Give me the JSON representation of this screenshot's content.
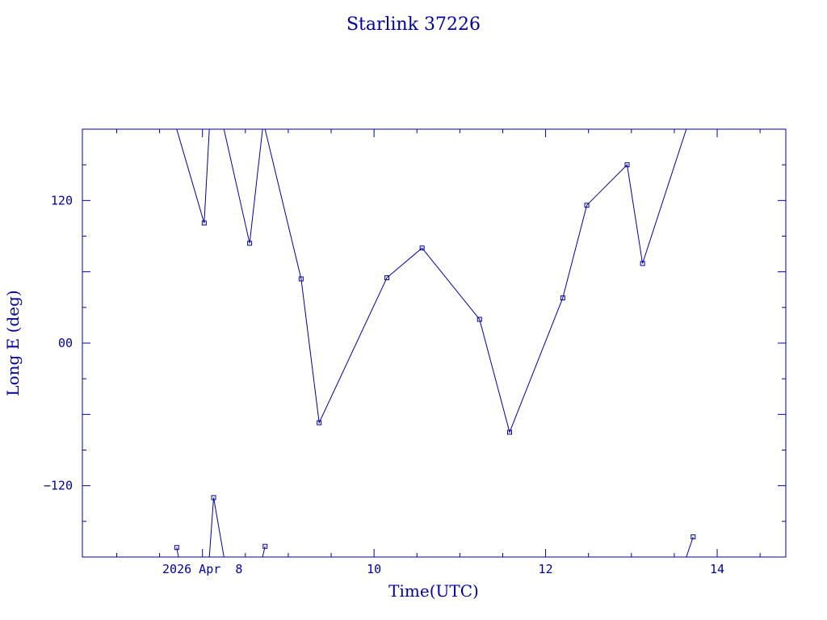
{
  "chart_data": {
    "type": "line",
    "title": "Starlink 37226",
    "xlabel": "Time(UTC)",
    "ylabel": "Long E (deg)",
    "xlim": [
      6.6,
      14.8
    ],
    "ylim": [
      -180,
      180
    ],
    "x_ticks": [
      {
        "value": 8,
        "label": "2026 Apr  8"
      },
      {
        "value": 10,
        "label": "10"
      },
      {
        "value": 12,
        "label": "12"
      },
      {
        "value": 14,
        "label": "14"
      }
    ],
    "y_ticks": [
      {
        "value": 120,
        "label": "120"
      },
      {
        "value": 0,
        "label": "00"
      },
      {
        "value": -120,
        "label": "−120"
      }
    ],
    "grid": false,
    "color": "#0000a0",
    "series": [
      {
        "points": [
          [
            7.7,
            -172
          ],
          [
            7.72,
            -180
          ]
        ]
      },
      {
        "points": [
          [
            7.7,
            180
          ],
          [
            8.02,
            101
          ],
          [
            8.08,
            180
          ]
        ]
      },
      {
        "points": [
          [
            8.08,
            -180
          ],
          [
            8.13,
            -130
          ],
          [
            8.25,
            -180
          ]
        ]
      },
      {
        "points": [
          [
            8.25,
            180
          ],
          [
            8.55,
            84
          ],
          [
            8.7,
            180
          ]
        ]
      },
      {
        "points": [
          [
            8.7,
            -180
          ],
          [
            8.73,
            -171
          ]
        ]
      },
      {
        "points": [
          [
            8.73,
            180
          ],
          [
            9.15,
            54
          ],
          [
            9.36,
            -67
          ],
          [
            10.15,
            55
          ],
          [
            10.56,
            80
          ],
          [
            11.23,
            20
          ],
          [
            11.58,
            -75
          ],
          [
            12.2,
            38
          ],
          [
            12.48,
            116
          ],
          [
            12.95,
            150
          ],
          [
            13.13,
            67
          ],
          [
            13.64,
            180
          ]
        ]
      },
      {
        "points": [
          [
            13.64,
            -180
          ],
          [
            13.72,
            -163
          ]
        ]
      }
    ]
  }
}
